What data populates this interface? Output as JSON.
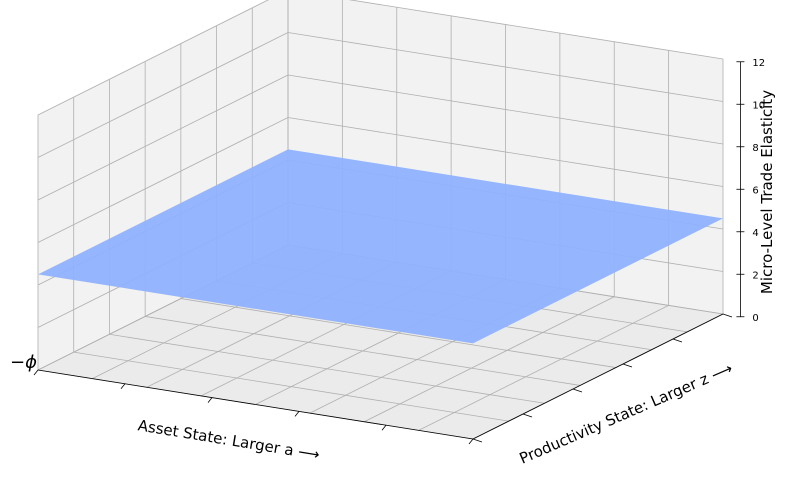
{
  "chart_data": {
    "type": "surface",
    "title": "",
    "xlabel": "Asset State: Larger a ⟶",
    "ylabel": "Productivity State: Larger z ⟶",
    "zlabel": "Micro-Level Trade Elasticity",
    "x_start_label": "−ϕ",
    "zlim": [
      0,
      12
    ],
    "z_ticks": [
      "0",
      "2",
      "4",
      "6",
      "8",
      "10",
      "12"
    ],
    "surface_value": 4.5,
    "surface_color": "#8fb2ff",
    "grid": true,
    "pane_color": "#f2f2f2"
  }
}
